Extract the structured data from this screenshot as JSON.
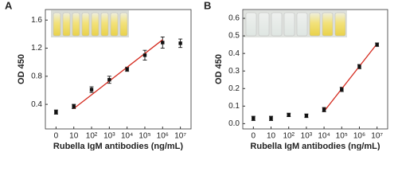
{
  "chart_data": [
    {
      "type": "scatter",
      "panel_label": "A",
      "ylabel": "OD 450",
      "xlabel": "Rubella IgM antibodies (ng/mL)",
      "x": [
        0,
        1,
        2,
        3,
        4,
        5,
        6,
        7
      ],
      "xlim": [
        -0.6,
        7.6
      ],
      "xticks": [
        {
          "value": 0,
          "label": "0"
        },
        {
          "value": 1,
          "label": "10"
        },
        {
          "value": 2,
          "label": "10²"
        },
        {
          "value": 3,
          "label": "10³"
        },
        {
          "value": 4,
          "label": "10⁴"
        },
        {
          "value": 5,
          "label": "10⁵"
        },
        {
          "value": 6,
          "label": "10⁶"
        },
        {
          "value": 7,
          "label": "10⁷"
        }
      ],
      "ylim": [
        0.05,
        1.75
      ],
      "yticks": [
        0.4,
        0.8,
        1.2,
        1.6
      ],
      "series": [
        {
          "color": "#111111",
          "values": [
            0.29,
            0.37,
            0.61,
            0.75,
            0.9,
            1.1,
            1.28,
            1.27
          ],
          "errors": [
            0.03,
            0.03,
            0.04,
            0.05,
            0.03,
            0.07,
            0.08,
            0.06
          ]
        },
        {
          "color": "#d42a1e",
          "style": "line",
          "x": [
            1,
            6
          ],
          "values": [
            0.34,
            1.32
          ]
        }
      ]
    },
    {
      "type": "scatter",
      "panel_label": "B",
      "ylabel": "OD 450",
      "xlabel": "Rubella IgM antibodies (ng/mL)",
      "x": [
        0,
        1,
        2,
        3,
        4,
        5,
        6,
        7
      ],
      "xlim": [
        -0.6,
        7.6
      ],
      "xticks": [
        {
          "value": 0,
          "label": "0"
        },
        {
          "value": 1,
          "label": "10"
        },
        {
          "value": 2,
          "label": "10²"
        },
        {
          "value": 3,
          "label": "10³"
        },
        {
          "value": 4,
          "label": "10⁴"
        },
        {
          "value": 5,
          "label": "10⁵"
        },
        {
          "value": 6,
          "label": "10⁶"
        },
        {
          "value": 7,
          "label": "10⁷"
        }
      ],
      "ylim": [
        -0.03,
        0.65
      ],
      "yticks": [
        {
          "value": 0,
          "label": "0.0"
        },
        0.1,
        0.2,
        0.3,
        0.4,
        0.5,
        0.6
      ],
      "series": [
        {
          "color": "#111111",
          "values": [
            0.03,
            0.03,
            0.05,
            0.045,
            0.08,
            0.195,
            0.325,
            0.45
          ],
          "errors": [
            0.012,
            0.012,
            0.01,
            0.01,
            0.012,
            0.012,
            0.012,
            0.01
          ]
        },
        {
          "color": "#d42a1e",
          "style": "line",
          "x": [
            4,
            7
          ],
          "values": [
            0.07,
            0.455
          ]
        }
      ]
    }
  ]
}
